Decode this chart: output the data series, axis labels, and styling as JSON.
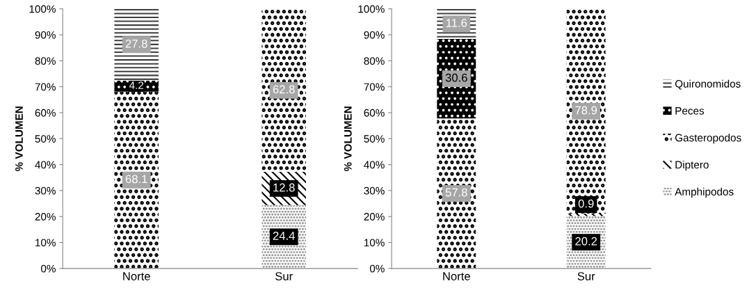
{
  "chart_data": [
    {
      "type": "bar",
      "stacked": true,
      "categories": [
        "Norte",
        "Sur"
      ],
      "ylabel": "% VOLUMEN",
      "ylim": [
        0,
        100
      ],
      "yticks": [
        {
          "value": 0,
          "label": "0%"
        },
        {
          "value": 10,
          "label": "10%"
        },
        {
          "value": 20,
          "label": "20%"
        },
        {
          "value": 30,
          "label": "30%"
        },
        {
          "value": 40,
          "label": "40%"
        },
        {
          "value": 50,
          "label": "50%"
        },
        {
          "value": 60,
          "label": "60%"
        },
        {
          "value": 70,
          "label": "70%"
        },
        {
          "value": 80,
          "label": "80%"
        },
        {
          "value": 90,
          "label": "90%"
        },
        {
          "value": 100,
          "label": "100%"
        }
      ],
      "grid": false,
      "series": [
        {
          "color": "#7f7f7f",
          "values": [
            0,
            24.4
          ],
          "value_labels": [
            null,
            "24.4"
          ]
        },
        {
          "color": "#000000",
          "values": [
            0,
            12.8
          ],
          "value_labels": [
            null,
            "12.8"
          ]
        },
        {
          "color": "#000000",
          "values": [
            68.1,
            62.8
          ],
          "value_labels": [
            "68.1",
            "62.8"
          ]
        },
        {
          "color": "#000000",
          "values": [
            4.2,
            0
          ],
          "value_labels": [
            "4.2",
            null
          ]
        },
        {
          "color": "#404040",
          "values": [
            27.8,
            0
          ],
          "value_labels": [
            "27.8",
            null
          ]
        }
      ]
    },
    {
      "type": "bar",
      "stacked": true,
      "categories": [
        "Norte",
        "Sur"
      ],
      "ylabel": "% VOLUMEN",
      "ylim": [
        0,
        100
      ],
      "yticks": [
        {
          "value": 0,
          "label": "0%"
        },
        {
          "value": 10,
          "label": "10%"
        },
        {
          "value": 20,
          "label": "20%"
        },
        {
          "value": 30,
          "label": "30%"
        },
        {
          "value": 40,
          "label": "40%"
        },
        {
          "value": 50,
          "label": "50%"
        },
        {
          "value": 60,
          "label": "60%"
        },
        {
          "value": 70,
          "label": "70%"
        },
        {
          "value": 80,
          "label": "80%"
        },
        {
          "value": 90,
          "label": "90%"
        },
        {
          "value": 100,
          "label": "100%"
        }
      ],
      "grid": false,
      "legend": "right",
      "series": [
        {
          "name": "Amphipodos",
          "color": "#7f7f7f",
          "values": [
            0,
            20.2
          ],
          "value_labels": [
            null,
            "20.2"
          ]
        },
        {
          "name": "Diptero",
          "color": "#000000",
          "values": [
            0,
            0.9
          ],
          "value_labels": [
            null,
            "0.9"
          ]
        },
        {
          "name": "Gasteropodos",
          "color": "#000000",
          "values": [
            57.8,
            78.9
          ],
          "value_labels": [
            "57.8",
            "78.9"
          ]
        },
        {
          "name": "Peces",
          "color": "#000000",
          "values": [
            30.6,
            0
          ],
          "value_labels": [
            "30.6",
            null
          ]
        },
        {
          "name": "Quironomidos",
          "color": "#404040",
          "values": [
            11.6,
            0
          ],
          "value_labels": [
            "11.6",
            null
          ]
        }
      ]
    }
  ]
}
